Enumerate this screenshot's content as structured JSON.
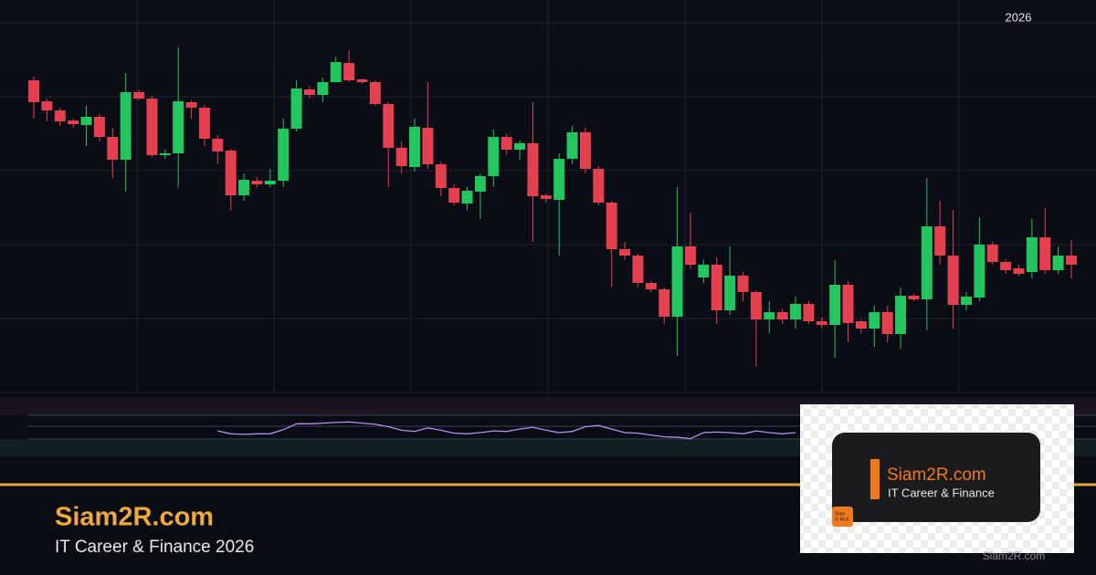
{
  "chart_data": {
    "type": "candlestick",
    "period_label": "2026",
    "ylim": [
      0,
      430
    ],
    "up_color": "#22c55e",
    "down_color": "#e5404f",
    "open": [
      342,
      319,
      309,
      298,
      293,
      302,
      280,
      255,
      329,
      322,
      260,
      262,
      318,
      312,
      278,
      265,
      216,
      232,
      228,
      232,
      289,
      332,
      326,
      340,
      361,
      343,
      340,
      316,
      268,
      247,
      290,
      250,
      224,
      207,
      220,
      237,
      280,
      266,
      273,
      216,
      211,
      256,
      285,
      245,
      208,
      157,
      150,
      120,
      113,
      83,
      160,
      126,
      140,
      90,
      128,
      110,
      80,
      88,
      80,
      97,
      78,
      74,
      118,
      78,
      70,
      88,
      64,
      106,
      102,
      182,
      150,
      96,
      104,
      162,
      143,
      136,
      132,
      170,
      134,
      150
    ],
    "high": [
      346,
      322,
      312,
      300,
      314,
      305,
      290,
      350,
      332,
      325,
      266,
      378,
      320,
      315,
      282,
      267,
      240,
      236,
      245,
      300,
      342,
      336,
      345,
      368,
      375,
      344,
      342,
      318,
      275,
      300,
      340,
      253,
      228,
      225,
      240,
      288,
      283,
      276,
      318,
      218,
      262,
      292,
      290,
      248,
      210,
      165,
      152,
      122,
      115,
      225,
      197,
      145,
      148,
      160,
      132,
      112,
      100,
      92,
      105,
      100,
      82,
      145,
      122,
      80,
      95,
      95,
      115,
      108,
      235,
      210,
      200,
      110,
      192,
      165,
      146,
      140,
      190,
      202,
      160,
      167
    ],
    "low": [
      300,
      297,
      292,
      290,
      270,
      275,
      235,
      220,
      320,
      258,
      256,
      225,
      300,
      270,
      250,
      200,
      210,
      225,
      225,
      225,
      286,
      322,
      318,
      340,
      340,
      338,
      314,
      225,
      240,
      242,
      245,
      215,
      205,
      200,
      190,
      225,
      260,
      255,
      165,
      208,
      150,
      250,
      240,
      205,
      115,
      145,
      115,
      110,
      75,
      40,
      135,
      120,
      75,
      85,
      100,
      28,
      65,
      75,
      70,
      75,
      70,
      38,
      55,
      65,
      50,
      55,
      48,
      100,
      68,
      140,
      70,
      90,
      100,
      140,
      130,
      128,
      125,
      130,
      130,
      125
    ],
    "close": [
      318,
      309,
      297,
      294,
      302,
      280,
      255,
      329,
      322,
      260,
      262,
      319,
      312,
      278,
      264,
      216,
      233,
      228,
      232,
      289,
      333,
      326,
      340,
      362,
      342,
      340,
      316,
      268,
      248,
      291,
      250,
      224,
      208,
      221,
      237,
      280,
      266,
      273,
      215,
      212,
      256,
      285,
      245,
      208,
      157,
      150,
      120,
      113,
      83,
      160,
      140,
      140,
      90,
      128,
      110,
      80,
      88,
      80,
      97,
      78,
      74,
      118,
      76,
      70,
      88,
      64,
      106,
      102,
      182,
      150,
      96,
      105,
      162,
      143,
      134,
      130,
      170,
      134,
      150,
      140
    ],
    "indicator": {
      "color": "#b78cf0",
      "ylim": [
        0,
        100
      ],
      "values": [
        null,
        null,
        null,
        null,
        null,
        null,
        null,
        null,
        null,
        null,
        null,
        null,
        null,
        null,
        43,
        38,
        37,
        38,
        38,
        45,
        55,
        55,
        56,
        57,
        58,
        56,
        54,
        50,
        44,
        42,
        48,
        44,
        39,
        38,
        40,
        43,
        42,
        46,
        49,
        44,
        40,
        42,
        50,
        52,
        46,
        40,
        39,
        36,
        33,
        32,
        30,
        40,
        41,
        40,
        38,
        43,
        40,
        38,
        40,
        null,
        null,
        null,
        null,
        null,
        null,
        null,
        null,
        null,
        null,
        null,
        null,
        null,
        null,
        null,
        null,
        null,
        null,
        null,
        null,
        null
      ]
    }
  },
  "footer": {
    "title": "Siam2R.com",
    "subtitle": "IT Career & Finance 2026"
  },
  "logo": {
    "title": "Siam2R.com",
    "subtitle": "IT Career & Finance",
    "icon_text": [
      "Siam",
      "to Rich"
    ]
  },
  "watermark": "Siam2R.com"
}
